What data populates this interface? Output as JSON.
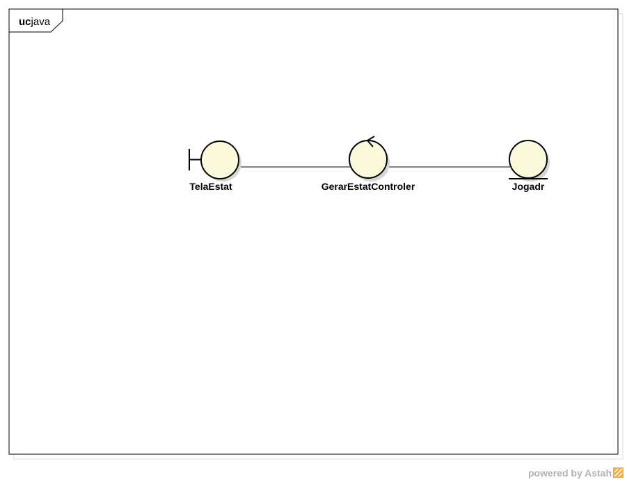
{
  "frame": {
    "kind": "uc",
    "name": "java"
  },
  "nodes": [
    {
      "id": "tela-estat",
      "type": "boundary",
      "label": "TelaEstat"
    },
    {
      "id": "gerar-estat-controler",
      "type": "control",
      "label": "GerarEstatControler"
    },
    {
      "id": "jogadr",
      "type": "entity",
      "label": "Jogadr"
    }
  ],
  "links": [
    {
      "from": "tela-estat",
      "to": "gerar-estat-controler"
    },
    {
      "from": "gerar-estat-controler",
      "to": "jogadr"
    }
  ],
  "colors": {
    "node_fill": "#fcfadc",
    "stroke": "#000000",
    "shadow": "#d6d6d6",
    "watermark_text": "#b0b0b0",
    "watermark_logo": "#f0b048"
  },
  "watermark": {
    "text": "powered by Astah"
  }
}
